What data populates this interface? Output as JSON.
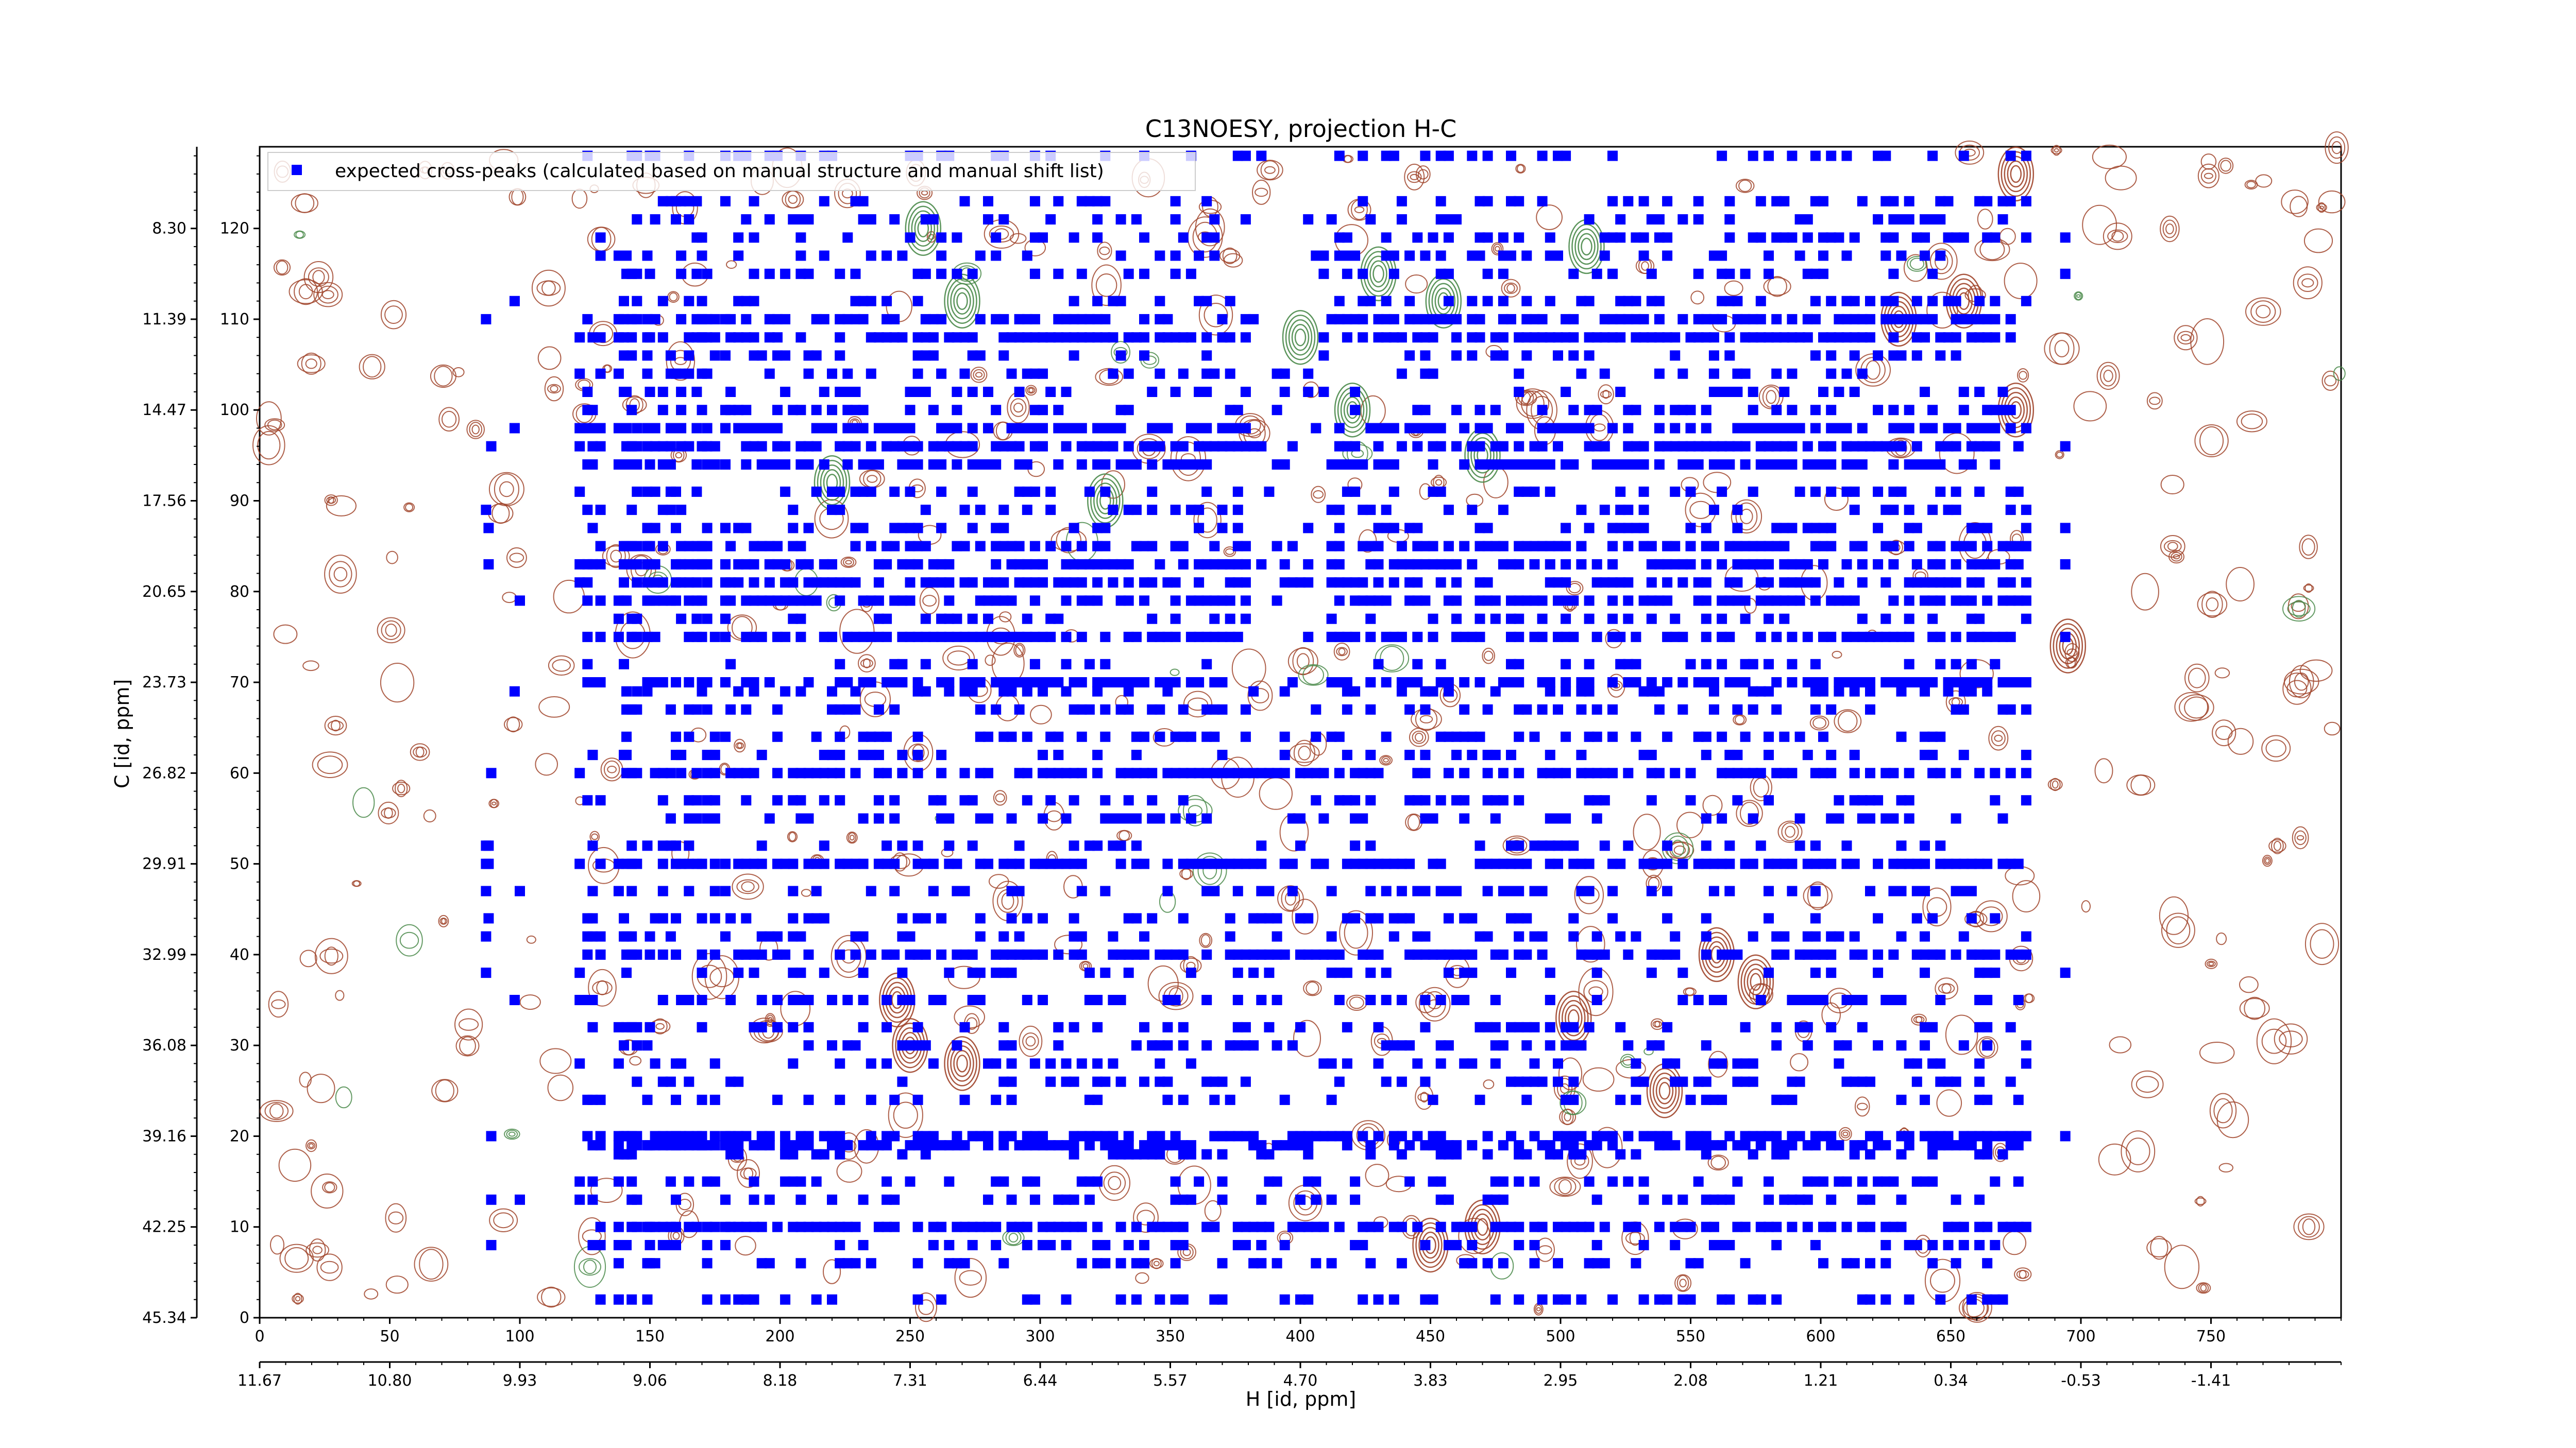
{
  "chart_data": {
    "type": "scatter",
    "title": "C13NOESY, projection H-C",
    "xlabel": "H [id, ppm]",
    "ylabel": "C [id, ppm]",
    "x_index_ticks": [
      "0",
      "50",
      "100",
      "150",
      "200",
      "250",
      "300",
      "350",
      "400",
      "450",
      "500",
      "550",
      "600",
      "650",
      "700",
      "750"
    ],
    "x_ppm_ticks": [
      "11.67",
      "10.80",
      "9.93",
      "9.06",
      "8.18",
      "7.31",
      "6.44",
      "5.57",
      "4.70",
      "3.83",
      "2.95",
      "2.08",
      "1.21",
      "0.34",
      "-0.53",
      "-1.41"
    ],
    "y_index_ticks": [
      "0",
      "10",
      "20",
      "30",
      "40",
      "50",
      "60",
      "70",
      "80",
      "90",
      "100",
      "110",
      "120"
    ],
    "y_ppm_ticks": [
      "45.34",
      "42.25",
      "39.16",
      "36.08",
      "32.99",
      "29.91",
      "26.82",
      "23.73",
      "20.65",
      "17.56",
      "14.47",
      "11.39",
      "8.30"
    ],
    "xlim": [
      0,
      800
    ],
    "ylim": [
      0,
      129
    ],
    "legend": {
      "placement": "upper-left",
      "entries": [
        "expected cross-peaks (calculated based on manual structure and manual shift list)"
      ]
    },
    "series": [
      {
        "name": "expected cross-peaks (calculated based on manual structure and manual shift list)",
        "marker": "square",
        "color": "#0000ff",
        "columns_x": [
          87,
          88,
          89,
          98,
          100,
          123,
          126,
          128,
          131,
          138,
          140,
          141,
          143,
          145,
          149,
          150,
          152,
          155,
          158,
          160,
          162,
          165,
          168,
          170,
          172,
          175,
          179,
          181,
          184,
          187,
          190,
          193,
          196,
          199,
          202,
          205,
          208,
          211,
          214,
          217,
          220,
          223,
          226,
          229,
          232,
          235,
          238,
          241,
          244,
          247,
          250,
          253,
          256,
          259,
          262,
          265,
          268,
          271,
          274,
          277,
          280,
          283,
          286,
          289,
          292,
          295,
          298,
          301,
          304,
          307,
          310,
          313,
          316,
          319,
          322,
          325,
          328,
          331,
          334,
          337,
          340,
          343,
          346,
          349,
          352,
          355,
          358,
          361,
          364,
          367,
          370,
          373,
          376,
          379,
          382,
          385,
          388,
          391,
          394,
          397,
          400,
          403,
          406,
          409,
          412,
          415,
          418,
          421,
          424,
          427,
          430,
          433,
          436,
          439,
          442,
          445,
          448,
          451,
          454,
          457,
          460,
          463,
          466,
          469,
          472,
          475,
          478,
          481,
          484,
          487,
          490,
          493,
          496,
          499,
          502,
          505,
          508,
          511,
          514,
          517,
          520,
          523,
          526,
          529,
          532,
          535,
          538,
          541,
          544,
          547,
          550,
          553,
          556,
          559,
          562,
          565,
          568,
          571,
          574,
          577,
          580,
          583,
          586,
          589,
          592,
          595,
          598,
          601,
          604,
          607,
          610,
          613,
          616,
          619,
          622,
          625,
          628,
          631,
          634,
          637,
          640,
          643,
          646,
          649,
          652,
          655,
          658,
          661,
          664,
          667,
          670,
          673,
          676,
          679,
          694
        ],
        "rows_y": [
          2,
          6,
          8,
          10,
          13,
          15,
          18,
          19,
          20,
          24,
          26,
          28,
          30,
          32,
          35,
          38,
          40,
          42,
          44,
          47,
          50,
          52,
          55,
          57,
          60,
          62,
          64,
          67,
          69,
          70,
          72,
          75,
          77,
          79,
          81,
          83,
          85,
          87,
          89,
          91,
          94,
          96,
          98,
          100,
          102,
          104,
          106,
          108,
          110,
          112,
          115,
          117,
          119,
          121,
          123,
          128
        ],
        "dense_rows_y": [
          10,
          19,
          20,
          40,
          50,
          60,
          70,
          75,
          79,
          81,
          83,
          85,
          94,
          96,
          98,
          108,
          110
        ],
        "note_rows": "marks are plotted at the listed x columns and y rows where expected cross-peaks occur"
      }
    ]
  }
}
